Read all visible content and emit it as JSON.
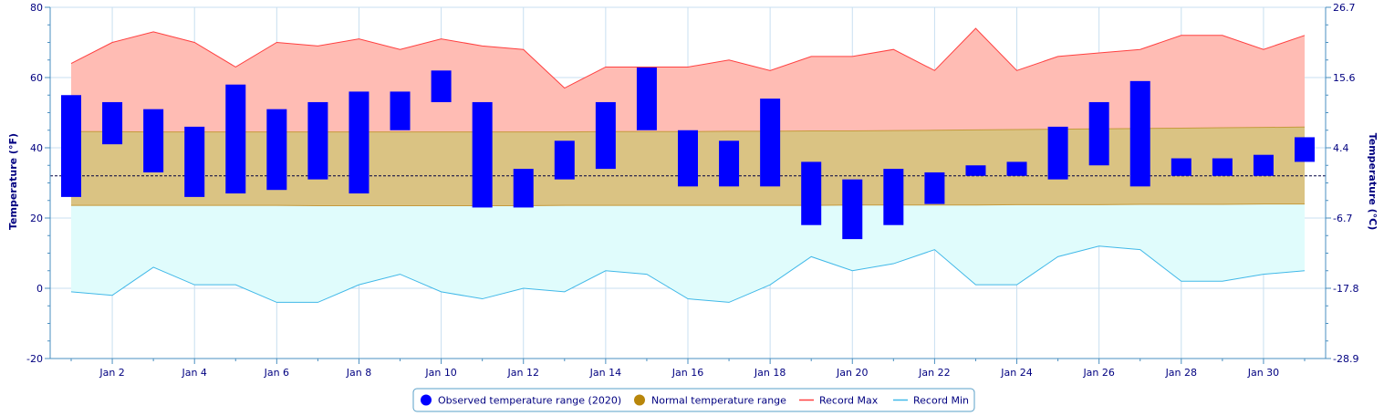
{
  "chart_data": {
    "type": "bar",
    "title": "",
    "categories": [
      "Jan 1",
      "Jan 2",
      "Jan 3",
      "Jan 4",
      "Jan 5",
      "Jan 6",
      "Jan 7",
      "Jan 8",
      "Jan 9",
      "Jan 10",
      "Jan 11",
      "Jan 12",
      "Jan 13",
      "Jan 14",
      "Jan 15",
      "Jan 16",
      "Jan 17",
      "Jan 18",
      "Jan 19",
      "Jan 20",
      "Jan 21",
      "Jan 22",
      "Jan 23",
      "Jan 24",
      "Jan 25",
      "Jan 26",
      "Jan 27",
      "Jan 28",
      "Jan 29",
      "Jan 30",
      "Jan 31"
    ],
    "x_tick_labels": [
      "Jan 2",
      "Jan 4",
      "Jan 6",
      "Jan 8",
      "Jan 10",
      "Jan 12",
      "Jan 14",
      "Jan 16",
      "Jan 18",
      "Jan 20",
      "Jan 22",
      "Jan 24",
      "Jan 26",
      "Jan 28",
      "Jan 30"
    ],
    "ylabel_left": "Temperature (°F)",
    "ylabel_right": "Temperature (°C)",
    "ylim": [
      -20,
      80
    ],
    "y_ticks_left": [
      "-20",
      "0",
      "20",
      "40",
      "60",
      "80"
    ],
    "y_ticks_right": [
      "-28.9",
      "-17.8",
      "-6.7",
      "4.4",
      "15.6",
      "26.7"
    ],
    "freezing_line": 32,
    "series": [
      {
        "name": "Observed temperature range (2020)",
        "kind": "range_bar",
        "color": "#0000ff",
        "low": [
          26,
          41,
          33,
          26,
          27,
          28,
          31,
          27,
          45,
          53,
          23,
          23,
          31,
          34,
          45,
          29,
          29,
          29,
          18,
          14,
          18,
          24,
          32,
          32,
          31,
          35,
          29,
          32,
          32,
          32,
          36
        ],
        "high": [
          55,
          53,
          51,
          46,
          58,
          51,
          53,
          56,
          56,
          62,
          53,
          34,
          42,
          53,
          63,
          45,
          42,
          54,
          36,
          31,
          34,
          33,
          35,
          36,
          46,
          53,
          59,
          37,
          37,
          38,
          43
        ]
      },
      {
        "name": "Normal temperature range",
        "kind": "band",
        "color": "#b8860b",
        "low": [
          23.6,
          23.6,
          23.6,
          23.6,
          23.6,
          23.6,
          23.5,
          23.5,
          23.5,
          23.5,
          23.5,
          23.5,
          23.6,
          23.6,
          23.6,
          23.6,
          23.6,
          23.6,
          23.6,
          23.7,
          23.7,
          23.7,
          23.7,
          23.8,
          23.8,
          23.8,
          23.9,
          23.9,
          23.9,
          24.0,
          24.0
        ],
        "high": [
          44.6,
          44.6,
          44.5,
          44.5,
          44.5,
          44.5,
          44.5,
          44.5,
          44.5,
          44.5,
          44.5,
          44.5,
          44.5,
          44.6,
          44.6,
          44.6,
          44.7,
          44.7,
          44.8,
          44.8,
          44.9,
          45.0,
          45.1,
          45.2,
          45.3,
          45.4,
          45.5,
          45.6,
          45.7,
          45.8,
          45.9
        ]
      },
      {
        "name": "Record Max",
        "kind": "line",
        "color": "#ff4040",
        "values": [
          64,
          70,
          73,
          70,
          63,
          70,
          69,
          71,
          68,
          71,
          69,
          68,
          57,
          63,
          63,
          63,
          65,
          62,
          66,
          66,
          68,
          62,
          74,
          62,
          66,
          67,
          68,
          72,
          72,
          68,
          72
        ]
      },
      {
        "name": "Record Min",
        "kind": "line",
        "color": "#40b8e8",
        "values": [
          -1,
          -2,
          6,
          1,
          1,
          -4,
          -4,
          1,
          4,
          -1,
          -3,
          0,
          -1,
          5,
          4,
          -3,
          -4,
          1,
          9,
          5,
          7,
          11,
          1,
          1,
          9,
          12,
          11,
          2,
          2,
          4,
          5
        ]
      }
    ],
    "grid": true,
    "legend_position": "bottom"
  }
}
